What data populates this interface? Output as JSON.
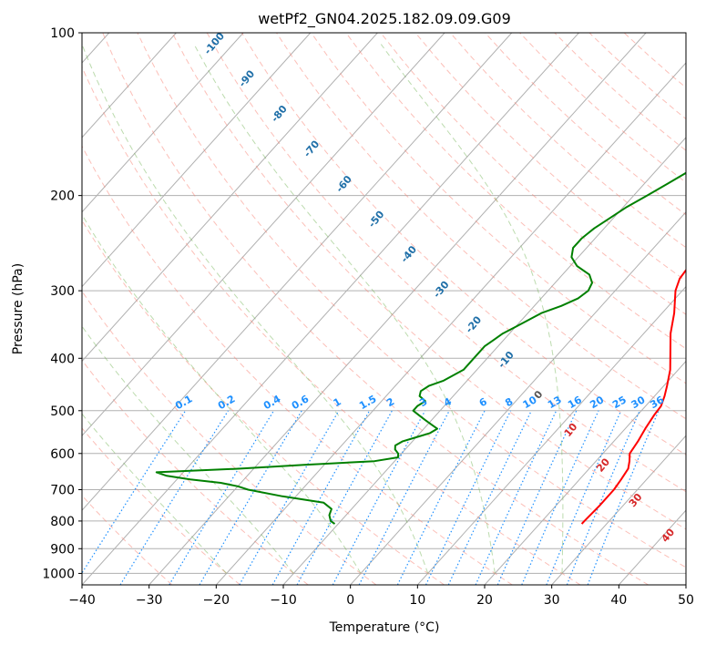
{
  "chart_data": {
    "type": "line",
    "title": "wetPf2_GN04.2025.182.09.09.G09",
    "xlabel": "Temperature (°C)",
    "ylabel": "Pressure (hPa)",
    "xlim": [
      -40,
      50
    ],
    "ylim": [
      1050,
      100
    ],
    "y_scale": "log",
    "grid": true,
    "x_ticks": [
      "−40",
      "−30",
      "−20",
      "−10",
      "0",
      "10",
      "20",
      "30",
      "40",
      "50"
    ],
    "y_ticks": [
      "100",
      "200",
      "300",
      "400",
      "500",
      "600",
      "700",
      "800",
      "900",
      "1000"
    ],
    "series": [
      {
        "color": "#ff0000",
        "pressure": [
          810,
          800,
          750,
          700,
          670,
          640,
          620,
          600,
          570,
          540,
          510,
          490,
          470,
          450,
          420,
          390,
          360,
          330,
          300,
          285,
          270,
          260,
          250,
          230,
          210,
          190,
          170,
          160,
          150,
          130,
          115,
          105,
          100
        ],
        "temperature": [
          26.3,
          26.3,
          26.5,
          26.5,
          26.2,
          25.8,
          25,
          24,
          23.6,
          23,
          22.5,
          22.3,
          21.5,
          20.5,
          18.8,
          16.5,
          14,
          11.8,
          9,
          8,
          7.7,
          7.7,
          7.3,
          6,
          4.2,
          2.3,
          -0.2,
          -1,
          -1.7,
          -2.2,
          -0.8,
          2,
          6
        ]
      },
      {
        "color": "#008000",
        "pressure": [
          810,
          800,
          780,
          760,
          740,
          720,
          700,
          690,
          680,
          670,
          660,
          650,
          640,
          630,
          620,
          610,
          600,
          590,
          580,
          570,
          560,
          550,
          540,
          530,
          520,
          510,
          500,
          490,
          480,
          470,
          460,
          450,
          440,
          420,
          400,
          380,
          370,
          360,
          350,
          340,
          330,
          320,
          310,
          300,
          290,
          280,
          270,
          260,
          250,
          240,
          230,
          220,
          210,
          200,
          190,
          180,
          170,
          160,
          150,
          140,
          130,
          120,
          110,
          105,
          100
        ],
        "temperature": [
          -10.5,
          -11.5,
          -12.5,
          -13,
          -15,
          -22,
          -28,
          -30,
          -33,
          -38,
          -42,
          -44,
          -32,
          -23,
          -13,
          -10,
          -10.5,
          -11.5,
          -12,
          -11.5,
          -10,
          -8.5,
          -8,
          -9.5,
          -11,
          -12.5,
          -14,
          -14,
          -13.5,
          -15,
          -15.5,
          -15,
          -13.5,
          -12,
          -12,
          -12,
          -11.5,
          -11,
          -10,
          -9,
          -8,
          -6,
          -4.5,
          -4,
          -4.5,
          -6,
          -9,
          -11,
          -12,
          -12,
          -11.5,
          -10.5,
          -9.5,
          -8,
          -6.5,
          -5,
          -3.8,
          -4,
          -4,
          -4.3,
          -4.1,
          -3.4,
          -1.8,
          0.4,
          2.2
        ]
      }
    ],
    "dry_adiabats": {
      "color": "#fa8072",
      "theta_c": [
        -30,
        -20,
        -10,
        0,
        10,
        20,
        30,
        40,
        50,
        60,
        70,
        80,
        90,
        100,
        110,
        120,
        130,
        140,
        150,
        160,
        170,
        180,
        190
      ],
      "labels": [
        "-100",
        "-90",
        "-80",
        "-70",
        "-60",
        "-50",
        "-40",
        "-30",
        "-20",
        "-10",
        "0",
        "10",
        "20",
        "30",
        "40"
      ]
    },
    "mixing_ratio_lines": {
      "color": "#1e90ff",
      "values": [
        0.1,
        0.2,
        0.4,
        0.6,
        1,
        1.5,
        2,
        3,
        4,
        6,
        8,
        10,
        13,
        16,
        20,
        25,
        30,
        36
      ],
      "labels": [
        "0.1",
        "0.2",
        "0.4",
        "0.6",
        "1",
        "1.5",
        "2",
        "3",
        "4",
        "6",
        "8",
        "10",
        "13",
        "16",
        "20",
        "25",
        "30",
        "36"
      ]
    },
    "moist_adiabats": {
      "color": "#6ab04c",
      "theta_w_c": [
        -20,
        -10,
        0,
        10,
        20,
        30
      ]
    }
  }
}
